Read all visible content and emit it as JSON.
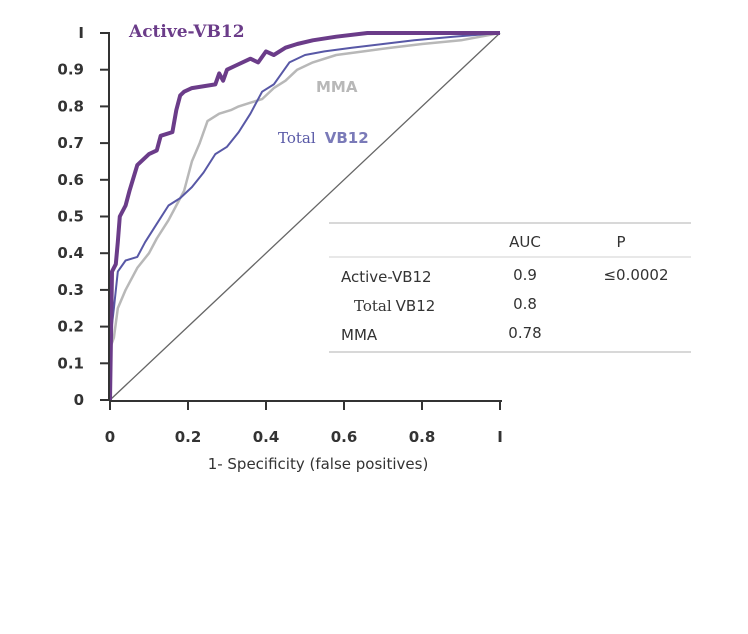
{
  "chart_data": {
    "type": "line",
    "title": "",
    "xlabel": "1- Specificity (false positives)",
    "ylabel": "",
    "xlim": [
      0,
      1
    ],
    "ylim": [
      0,
      1
    ],
    "x_ticks": [
      "0",
      "0.2",
      "0.4",
      "0.6",
      "0.8",
      "I"
    ],
    "y_ticks": [
      "0",
      "0.1",
      "0.2",
      "0.3",
      "0.4",
      "0.5",
      "0.6",
      "0.7",
      "0.8",
      "0.9",
      "I"
    ],
    "series": [
      {
        "name": "Active-VB12",
        "label_text": "Active-VB12",
        "color": "#6b3c89",
        "points": [
          [
            0,
            0
          ],
          [
            0.005,
            0.35
          ],
          [
            0.015,
            0.37
          ],
          [
            0.02,
            0.43
          ],
          [
            0.025,
            0.5
          ],
          [
            0.04,
            0.53
          ],
          [
            0.05,
            0.57
          ],
          [
            0.07,
            0.64
          ],
          [
            0.1,
            0.67
          ],
          [
            0.12,
            0.68
          ],
          [
            0.13,
            0.72
          ],
          [
            0.16,
            0.73
          ],
          [
            0.17,
            0.79
          ],
          [
            0.18,
            0.83
          ],
          [
            0.19,
            0.84
          ],
          [
            0.21,
            0.85
          ],
          [
            0.27,
            0.86
          ],
          [
            0.28,
            0.89
          ],
          [
            0.29,
            0.87
          ],
          [
            0.3,
            0.9
          ],
          [
            0.32,
            0.91
          ],
          [
            0.36,
            0.93
          ],
          [
            0.38,
            0.92
          ],
          [
            0.4,
            0.95
          ],
          [
            0.42,
            0.94
          ],
          [
            0.45,
            0.96
          ],
          [
            0.48,
            0.97
          ],
          [
            0.52,
            0.98
          ],
          [
            0.58,
            0.99
          ],
          [
            0.66,
            1.0
          ],
          [
            1.0,
            1.0
          ]
        ]
      },
      {
        "name": "Total VB12",
        "label_text_main": "Total",
        "label_text_bold": "VB12",
        "color": "#5858a6",
        "points": [
          [
            0,
            0.16
          ],
          [
            0.01,
            0.25
          ],
          [
            0.02,
            0.35
          ],
          [
            0.04,
            0.38
          ],
          [
            0.07,
            0.39
          ],
          [
            0.09,
            0.43
          ],
          [
            0.12,
            0.48
          ],
          [
            0.15,
            0.53
          ],
          [
            0.18,
            0.55
          ],
          [
            0.21,
            0.58
          ],
          [
            0.24,
            0.62
          ],
          [
            0.27,
            0.67
          ],
          [
            0.3,
            0.69
          ],
          [
            0.33,
            0.73
          ],
          [
            0.36,
            0.78
          ],
          [
            0.39,
            0.84
          ],
          [
            0.42,
            0.86
          ],
          [
            0.44,
            0.89
          ],
          [
            0.46,
            0.92
          ],
          [
            0.5,
            0.94
          ],
          [
            0.55,
            0.95
          ],
          [
            0.62,
            0.96
          ],
          [
            0.7,
            0.97
          ],
          [
            0.78,
            0.98
          ],
          [
            0.88,
            0.99
          ],
          [
            1.0,
            1.0
          ]
        ]
      },
      {
        "name": "MMA",
        "label_text": "MMA",
        "color": "#b8b8b8",
        "points": [
          [
            0,
            0.14
          ],
          [
            0.01,
            0.17
          ],
          [
            0.02,
            0.25
          ],
          [
            0.04,
            0.3
          ],
          [
            0.07,
            0.36
          ],
          [
            0.1,
            0.4
          ],
          [
            0.12,
            0.44
          ],
          [
            0.15,
            0.49
          ],
          [
            0.17,
            0.53
          ],
          [
            0.19,
            0.57
          ],
          [
            0.21,
            0.65
          ],
          [
            0.23,
            0.7
          ],
          [
            0.25,
            0.76
          ],
          [
            0.28,
            0.78
          ],
          [
            0.31,
            0.79
          ],
          [
            0.33,
            0.8
          ],
          [
            0.36,
            0.81
          ],
          [
            0.39,
            0.82
          ],
          [
            0.42,
            0.85
          ],
          [
            0.45,
            0.87
          ],
          [
            0.48,
            0.9
          ],
          [
            0.52,
            0.92
          ],
          [
            0.58,
            0.94
          ],
          [
            0.65,
            0.95
          ],
          [
            0.72,
            0.96
          ],
          [
            0.8,
            0.97
          ],
          [
            0.9,
            0.98
          ],
          [
            1.0,
            1.0
          ]
        ]
      }
    ],
    "reference_line": {
      "from": [
        0,
        0
      ],
      "to": [
        1,
        1
      ],
      "color": "#666666"
    },
    "table": {
      "headers": [
        "AUC",
        "P"
      ],
      "rows": [
        {
          "name": "Active-VB12",
          "name_main": "Active-",
          "name_suffix": "VB12",
          "auc": "0.9",
          "p": "≤0.0002"
        },
        {
          "name": "Total VB12",
          "name_main": "Total",
          "name_suffix": "VB12",
          "auc": "0.8",
          "p": ""
        },
        {
          "name": "MMA",
          "name_main": "MMA",
          "name_suffix": "",
          "auc": "0.78",
          "p": ""
        }
      ]
    }
  }
}
